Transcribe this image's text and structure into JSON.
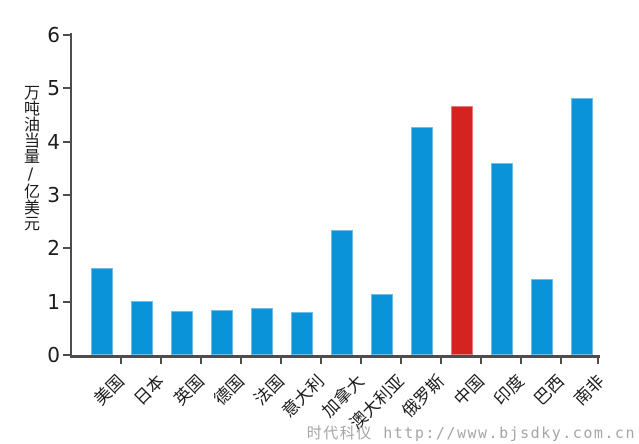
{
  "chart_data": {
    "type": "bar",
    "title": "",
    "xlabel": "",
    "ylabel": "万吨油当量/亿美元",
    "ylim": [
      0,
      6
    ],
    "yticks": [
      0,
      1,
      2,
      3,
      4,
      5,
      6
    ],
    "grid": false,
    "legend_position": "none",
    "categories": [
      "美国",
      "日本",
      "英国",
      "德国",
      "法国",
      "意大利",
      "加拿大",
      "澳大利亚",
      "俄罗斯",
      "中国",
      "印度",
      "巴西",
      "南非"
    ],
    "category_slugs": [
      "usa",
      "japan",
      "uk",
      "germany",
      "france",
      "italy",
      "canada",
      "australia",
      "russia",
      "china",
      "india",
      "brazil",
      "south-africa"
    ],
    "values": [
      1.64,
      1.01,
      0.82,
      0.84,
      0.89,
      0.8,
      2.34,
      1.15,
      4.28,
      4.66,
      3.6,
      1.43,
      4.82
    ],
    "highlight_category": "中国",
    "bar_color": "#0a93d9",
    "highlight_color": "#d42320",
    "axis_color": "#4d4d4d",
    "text_color": "#1c1c1c"
  },
  "watermark": {
    "text": "时代科仪 http://www.bjsdky.com.cn",
    "color": "#a6a6a6"
  }
}
